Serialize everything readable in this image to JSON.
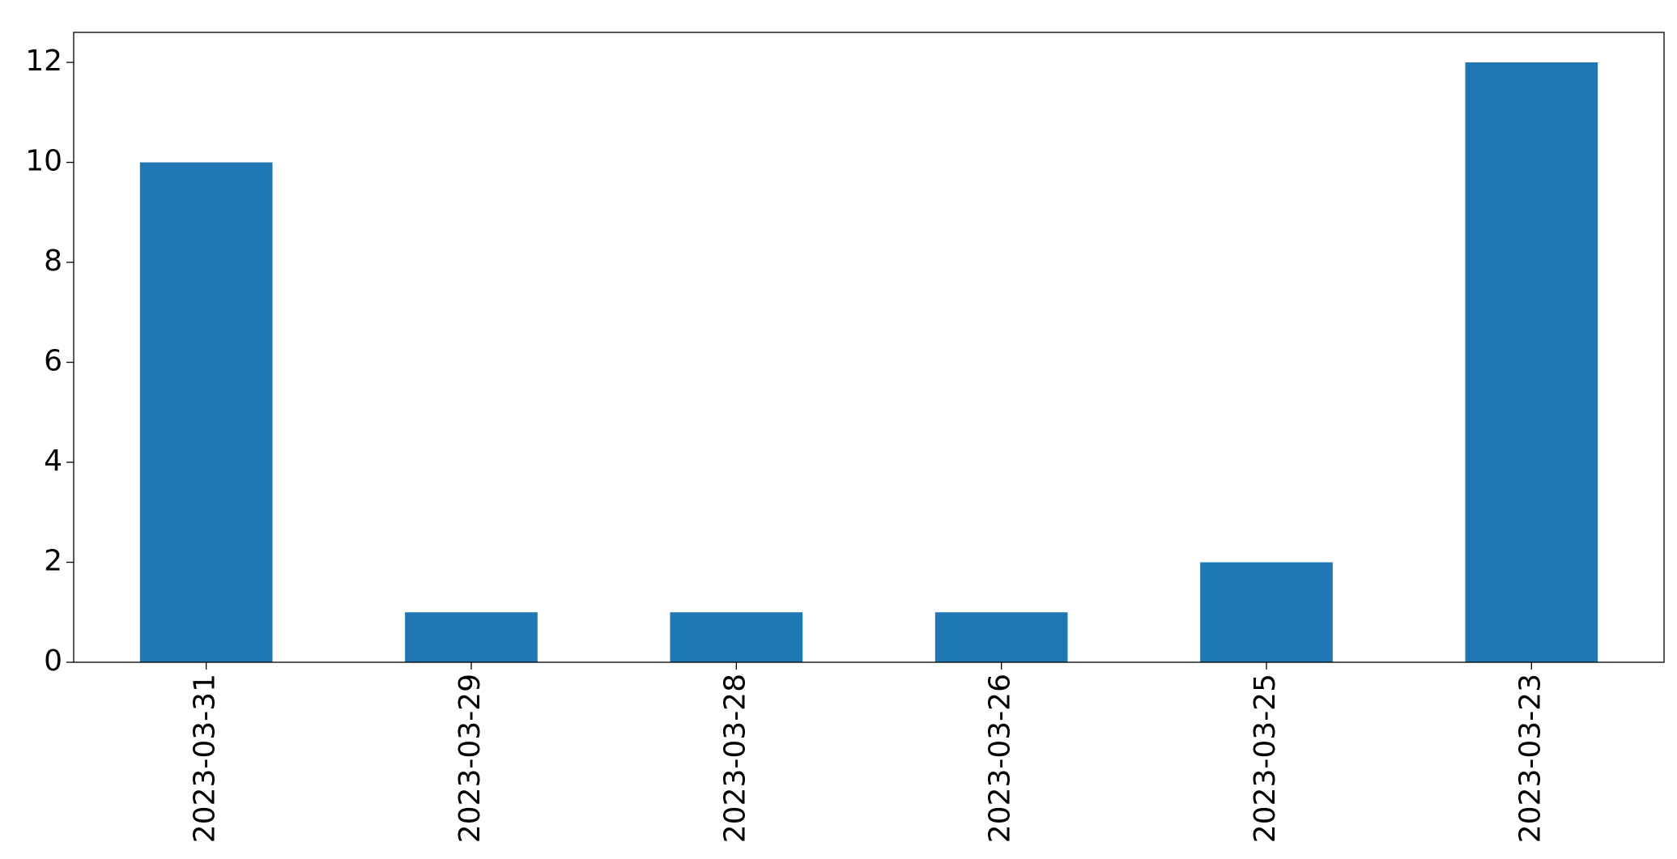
{
  "chart_data": {
    "type": "bar",
    "categories": [
      "2023-03-31",
      "2023-03-29",
      "2023-03-28",
      "2023-03-26",
      "2023-03-25",
      "2023-03-23"
    ],
    "values": [
      10,
      1,
      1,
      1,
      2,
      12
    ],
    "color": "#1f77b4",
    "ylim": [
      0,
      12.6
    ],
    "yticks": [
      0,
      2,
      4,
      6,
      8,
      10,
      12
    ],
    "grid": false
  }
}
